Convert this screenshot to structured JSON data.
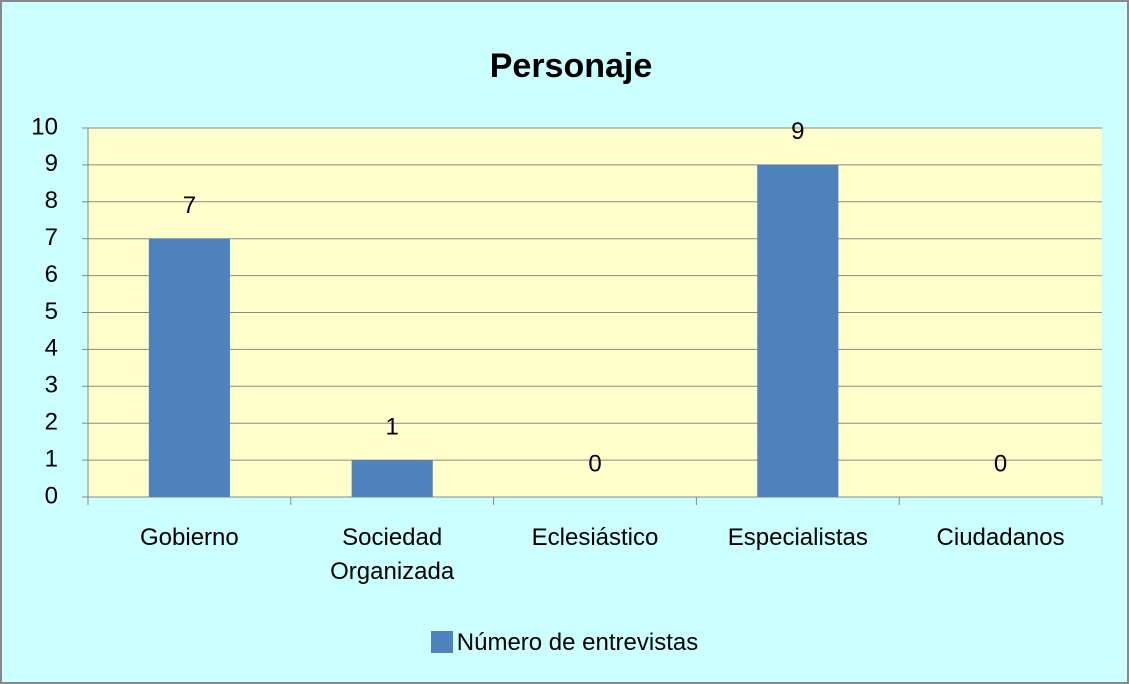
{
  "chart_data": {
    "type": "bar",
    "title": "Personaje",
    "categories": [
      "Gobierno",
      "Sociedad Organizada",
      "Eclesiástico",
      "Especialistas",
      "Ciudadanos"
    ],
    "series": [
      {
        "name": "Número de entrevistas",
        "color": "#4f81bd",
        "values": [
          7,
          1,
          0,
          9,
          0
        ]
      }
    ],
    "ylim": [
      0,
      10
    ],
    "yticks": [
      0,
      1,
      2,
      3,
      4,
      5,
      6,
      7,
      8,
      9,
      10
    ],
    "grid": true,
    "legend": "bottom"
  }
}
